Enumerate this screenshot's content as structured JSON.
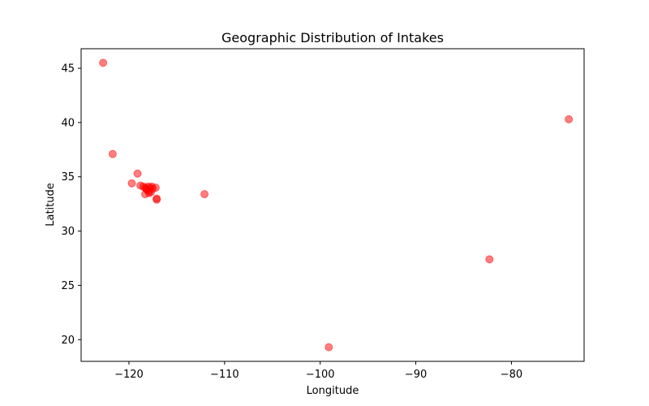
{
  "chart_data": {
    "type": "scatter",
    "title": "Geographic Distribution of Intakes",
    "xlabel": "Longitude",
    "ylabel": "Latitude",
    "xlim": [
      -125.0,
      -72.4
    ],
    "ylim": [
      18.0,
      46.8
    ],
    "xticks": [
      -120,
      -110,
      -100,
      -90,
      -80
    ],
    "yticks": [
      20,
      25,
      30,
      35,
      40,
      45
    ],
    "grid": false,
    "marker_color": "#ff0000",
    "marker_alpha": 0.5,
    "points": [
      {
        "x": -122.7,
        "y": 45.5
      },
      {
        "x": -121.7,
        "y": 37.1
      },
      {
        "x": -119.1,
        "y": 35.3
      },
      {
        "x": -119.7,
        "y": 34.4
      },
      {
        "x": -118.8,
        "y": 34.2
      },
      {
        "x": -118.5,
        "y": 34.1
      },
      {
        "x": -118.3,
        "y": 34.0
      },
      {
        "x": -118.2,
        "y": 33.9
      },
      {
        "x": -118.3,
        "y": 33.4
      },
      {
        "x": -118.1,
        "y": 33.8
      },
      {
        "x": -118.0,
        "y": 34.1
      },
      {
        "x": -117.9,
        "y": 33.7
      },
      {
        "x": -117.8,
        "y": 34.0
      },
      {
        "x": -117.7,
        "y": 33.6
      },
      {
        "x": -117.6,
        "y": 34.1
      },
      {
        "x": -117.5,
        "y": 33.9
      },
      {
        "x": -117.2,
        "y": 34.0
      },
      {
        "x": -117.9,
        "y": 33.5
      },
      {
        "x": -117.1,
        "y": 32.9
      },
      {
        "x": -117.1,
        "y": 33.0
      },
      {
        "x": -112.1,
        "y": 33.4
      },
      {
        "x": -99.1,
        "y": 19.3
      },
      {
        "x": -82.3,
        "y": 27.4
      },
      {
        "x": -74.0,
        "y": 40.3
      }
    ]
  }
}
